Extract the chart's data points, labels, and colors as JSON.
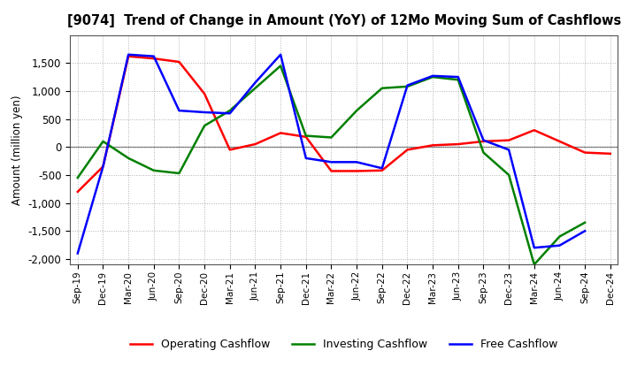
{
  "title": "[9074]  Trend of Change in Amount (YoY) of 12Mo Moving Sum of Cashflows",
  "ylabel": "Amount (million yen)",
  "x_labels": [
    "Sep-19",
    "Dec-19",
    "Mar-20",
    "Jun-20",
    "Sep-20",
    "Dec-20",
    "Mar-21",
    "Jun-21",
    "Sep-21",
    "Dec-21",
    "Mar-22",
    "Jun-22",
    "Sep-22",
    "Dec-22",
    "Mar-23",
    "Jun-23",
    "Sep-23",
    "Dec-23",
    "Mar-24",
    "Jun-24",
    "Sep-24",
    "Dec-24"
  ],
  "operating_cashflow": [
    -800,
    -350,
    1620,
    1580,
    1520,
    950,
    -50,
    50,
    250,
    180,
    -430,
    -430,
    -420,
    -50,
    30,
    50,
    100,
    120,
    300,
    100,
    -100,
    -120
  ],
  "investing_cashflow": [
    -550,
    100,
    -200,
    -420,
    -470,
    380,
    650,
    1050,
    1450,
    200,
    170,
    650,
    1050,
    1080,
    1250,
    1200,
    -100,
    -500,
    -2100,
    -1600,
    -1350,
    null
  ],
  "free_cashflow": [
    -1900,
    -350,
    1650,
    1620,
    650,
    620,
    600,
    1150,
    1650,
    -200,
    -270,
    -270,
    -380,
    1100,
    1270,
    1250,
    120,
    -50,
    -1800,
    -1760,
    -1500,
    null
  ],
  "op_color": "#ff0000",
  "inv_color": "#008000",
  "free_color": "#0000ff",
  "ylim": [
    -2100,
    2000
  ],
  "yticks": [
    -2000,
    -1500,
    -1000,
    -500,
    0,
    500,
    1000,
    1500
  ],
  "bg_color": "#ffffff",
  "grid_color": "#b0b0b0",
  "figsize": [
    7.2,
    4.4
  ],
  "dpi": 100
}
